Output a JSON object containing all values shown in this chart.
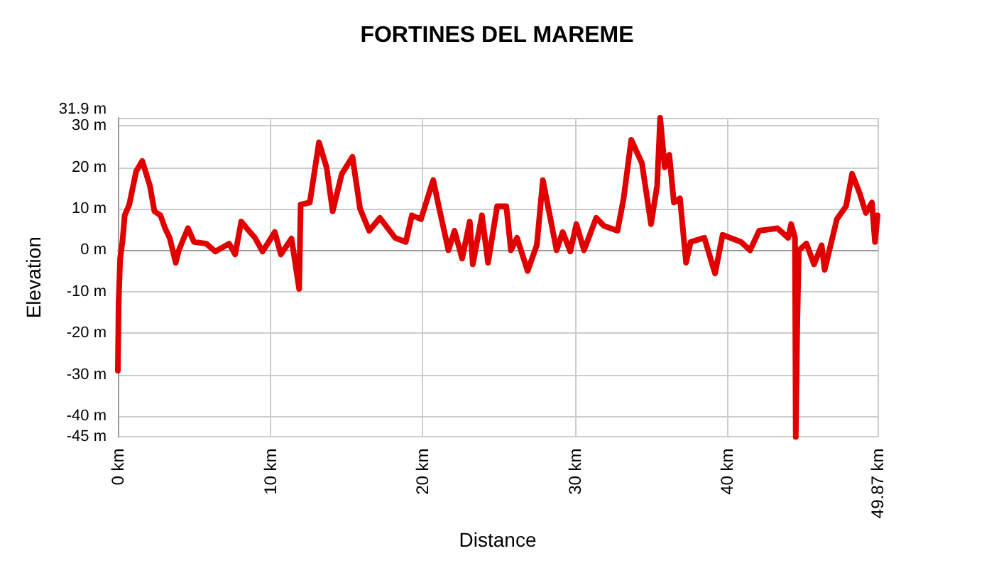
{
  "chart_data": {
    "type": "line",
    "title": "FORTINES DEL MAREME",
    "xlabel": "Distance",
    "ylabel": "Elevation",
    "x": [
      0,
      0.05,
      0.15,
      0.3,
      0.45,
      0.75,
      1.2,
      1.6,
      2.1,
      2.4,
      2.8,
      3.1,
      3.4,
      3.8,
      4.0,
      4.6,
      5.0,
      5.8,
      6.4,
      7.3,
      7.7,
      8.1,
      8.6,
      9.0,
      9.5,
      9.9,
      10.3,
      10.7,
      11.4,
      11.9,
      12.0,
      12.6,
      13.2,
      13.7,
      14.1,
      14.7,
      15.4,
      15.9,
      16.5,
      17.2,
      18.2,
      18.9,
      19.3,
      19.9,
      20.7,
      21.1,
      21.7,
      22.1,
      22.6,
      23.1,
      23.3,
      23.9,
      24.3,
      24.9,
      25.5,
      25.8,
      26.2,
      26.9,
      27.5,
      27.9,
      28.8,
      29.2,
      29.7,
      30.1,
      30.6,
      31.4,
      31.9,
      32.8,
      33.2,
      33.7,
      34.4,
      35.0,
      35.4,
      35.6,
      35.9,
      36.2,
      36.5,
      36.9,
      37.3,
      37.6,
      38.5,
      39.2,
      39.7,
      40.9,
      41.5,
      42.1,
      43.3,
      44.0,
      44.2,
      44.45,
      44.5,
      44.6,
      44.7,
      45.2,
      45.7,
      46.2,
      46.4,
      47.2,
      47.8,
      48.2,
      48.7,
      49.1,
      49.5,
      49.7,
      49.87
    ],
    "series": [
      {
        "color": "#e00000",
        "values": [
          -29,
          -12.8,
          -2,
          2,
          8.4,
          11,
          19,
          21.5,
          15.6,
          9.4,
          8.4,
          5.3,
          3,
          -3,
          0,
          5.3,
          2,
          1.6,
          -0.3,
          1.6,
          -1,
          6.9,
          4.7,
          3,
          -0.3,
          2,
          4.4,
          -1,
          2.8,
          -9.3,
          11,
          11.5,
          26,
          20,
          9.4,
          18.4,
          22.5,
          10,
          4.7,
          7.8,
          3,
          2,
          8.4,
          7.5,
          16.9,
          10,
          0,
          4.7,
          -2,
          6.9,
          -3.4,
          8.4,
          -3,
          10.6,
          10.6,
          0,
          3,
          -5,
          1.2,
          16.9,
          0,
          4.4,
          -0.3,
          6.3,
          0,
          7.8,
          5.9,
          4.7,
          12.5,
          26.6,
          21,
          6.3,
          15.6,
          31.9,
          20,
          23,
          11.5,
          12.5,
          -3,
          2,
          3,
          -5.6,
          3.7,
          2,
          0,
          4.7,
          5.3,
          3,
          6.3,
          3,
          -45,
          -17.5,
          0,
          1.6,
          -3.4,
          1.2,
          -4.7,
          7.5,
          10.6,
          18.4,
          13.7,
          9,
          11.5,
          2,
          8.4
        ]
      }
    ],
    "xlim": [
      0,
      49.87
    ],
    "xticks": [
      {
        "value": 0,
        "label": "0 km"
      },
      {
        "value": 10,
        "label": "10 km"
      },
      {
        "value": 20,
        "label": "20 km"
      },
      {
        "value": 30,
        "label": "30 km"
      },
      {
        "value": 40,
        "label": "40 km"
      },
      {
        "value": 49.87,
        "label": "49.87 km"
      }
    ],
    "ylim": [
      -45,
      31.9
    ],
    "yticks": [
      {
        "value": -45,
        "label": "-45 m"
      },
      {
        "value": -40,
        "label": "-40 m"
      },
      {
        "value": -30,
        "label": "-30 m"
      },
      {
        "value": -20,
        "label": "-20 m"
      },
      {
        "value": -10,
        "label": "-10 m"
      },
      {
        "value": 0,
        "label": "0 m"
      },
      {
        "value": 10,
        "label": "10 m"
      },
      {
        "value": 20,
        "label": "20 m"
      },
      {
        "value": 30,
        "label": "30 m"
      },
      {
        "value": 31.9,
        "label": "31.9 m"
      }
    ],
    "grid": true,
    "marker": "none",
    "line_style": "solid"
  }
}
